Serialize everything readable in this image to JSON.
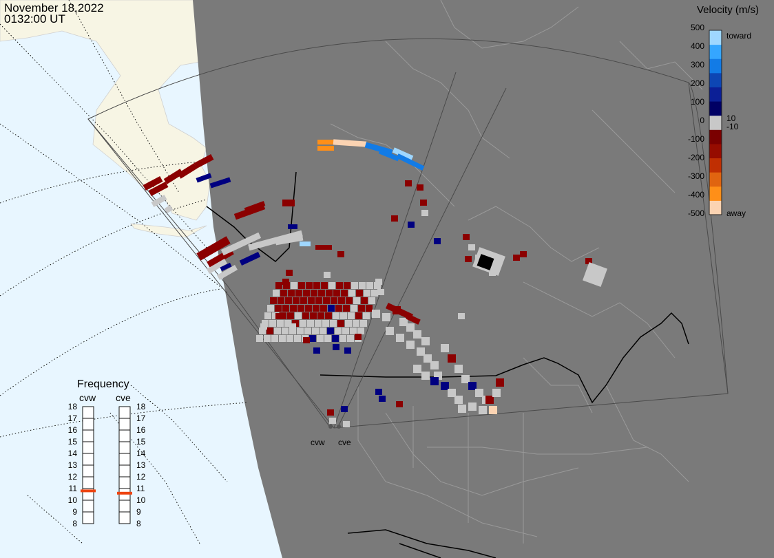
{
  "header": {
    "date": "November 18,2022",
    "time": "0132:00 UT"
  },
  "legend": {
    "title": "Velocity (m/s)",
    "ticks": [
      "500",
      "400",
      "300",
      "200",
      "100",
      "10",
      "0",
      "-10",
      "-100",
      "-200",
      "-300",
      "-400",
      "-500"
    ],
    "toward_label": "toward",
    "away_label": "away",
    "colors": [
      "#fbd3b2",
      "#ff8f18",
      "#e06410",
      "#c02f02",
      "#960c00",
      "#7a0000",
      "#c8c8c8",
      "#000064",
      "#0b1f96",
      "#0d46b4",
      "#127be6",
      "#35a6ff",
      "#9fd7ff"
    ]
  },
  "frequency": {
    "title": "Frequency",
    "radars": [
      {
        "name": "cvw",
        "selected_mhz": 10.8
      },
      {
        "name": "cve",
        "selected_mhz": 10.6
      }
    ],
    "scale": [
      "18",
      "17",
      "16",
      "15",
      "14",
      "13",
      "12",
      "11",
      "10",
      "9",
      "8"
    ],
    "marker_color": "#ee4411"
  },
  "radars": [
    {
      "name": "cvw"
    },
    {
      "name": "cve"
    }
  ],
  "map_colors": {
    "ocean": "#e8f6ff",
    "land_day": "#f7f5e4",
    "night": "#7a7a7a",
    "fov": "#4a4a4a"
  }
}
